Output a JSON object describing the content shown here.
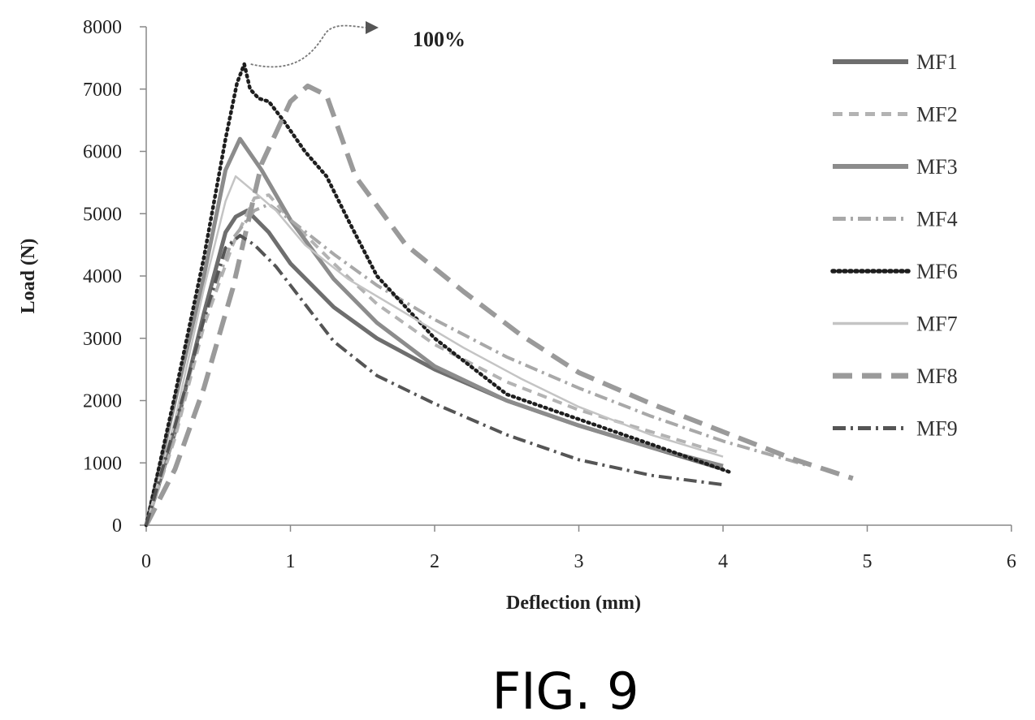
{
  "figure_caption": "FIG. 9",
  "chart_data": {
    "type": "line",
    "title": "",
    "xlabel": "Deflection (mm)",
    "ylabel": "Load (N)",
    "xlim": [
      0,
      6
    ],
    "ylim": [
      0,
      8000
    ],
    "x_ticks": [
      "0",
      "1",
      "2",
      "3",
      "4",
      "5",
      "6"
    ],
    "y_ticks": [
      "0",
      "1000",
      "2000",
      "3000",
      "4000",
      "5000",
      "6000",
      "7000",
      "8000"
    ],
    "grid": false,
    "legend_position": "right",
    "annotation": {
      "text": "100%",
      "points_to": {
        "x": 0.68,
        "y": 7400
      }
    },
    "series": [
      {
        "name": "MF1",
        "style": "solid",
        "color": "#6e6e6e",
        "x": [
          0,
          0.2,
          0.4,
          0.55,
          0.62,
          0.7,
          0.85,
          1.0,
          1.3,
          1.6,
          2.0,
          2.5,
          3.0,
          3.5,
          4.0
        ],
        "y": [
          0,
          1500,
          3400,
          4700,
          4950,
          5050,
          4700,
          4200,
          3500,
          3000,
          2500,
          2000,
          1600,
          1250,
          900
        ]
      },
      {
        "name": "MF2",
        "style": "dashed",
        "color": "#b3b3b3",
        "x": [
          0,
          0.2,
          0.4,
          0.6,
          0.75,
          0.85,
          1.0,
          1.3,
          1.6,
          2.0,
          2.5,
          3.0,
          3.5,
          4.0
        ],
        "y": [
          0,
          1400,
          3200,
          4500,
          5250,
          5300,
          4900,
          4200,
          3550,
          2900,
          2300,
          1850,
          1500,
          1150
        ]
      },
      {
        "name": "MF3",
        "style": "solid",
        "color": "#8c8c8c",
        "x": [
          0,
          0.2,
          0.4,
          0.55,
          0.65,
          0.8,
          1.0,
          1.3,
          1.6,
          2.0,
          2.5,
          3.0,
          3.5,
          4.0
        ],
        "y": [
          0,
          2000,
          4000,
          5700,
          6200,
          5700,
          4900,
          3950,
          3250,
          2550,
          2000,
          1600,
          1250,
          950
        ]
      },
      {
        "name": "MF4",
        "style": "dashdot",
        "color": "#a8a8a8",
        "x": [
          0,
          0.2,
          0.4,
          0.6,
          0.75,
          0.85,
          1.0,
          1.3,
          1.6,
          2.0,
          2.5,
          3.0,
          3.5,
          4.0,
          4.6
        ],
        "y": [
          0,
          1500,
          3300,
          4600,
          5050,
          5150,
          4900,
          4350,
          3850,
          3300,
          2700,
          2200,
          1750,
          1350,
          950
        ]
      },
      {
        "name": "MF6",
        "style": "dotted",
        "color": "#1e1e1e",
        "x": [
          0,
          0.2,
          0.4,
          0.55,
          0.63,
          0.68,
          0.72,
          0.78,
          0.85,
          0.95,
          1.1,
          1.25,
          1.4,
          1.6,
          2.0,
          2.5,
          3.0,
          3.5,
          4.05
        ],
        "y": [
          0,
          2100,
          4300,
          6200,
          7100,
          7400,
          7000,
          6850,
          6800,
          6500,
          6000,
          5600,
          4900,
          4000,
          3000,
          2100,
          1700,
          1300,
          850
        ]
      },
      {
        "name": "MF7",
        "style": "solid-thin",
        "color": "#c4c4c4",
        "x": [
          0,
          0.2,
          0.4,
          0.55,
          0.62,
          0.75,
          0.9,
          1.1,
          1.4,
          1.8,
          2.2,
          2.6,
          3.0,
          3.5,
          4.0
        ],
        "y": [
          0,
          1700,
          3800,
          5200,
          5600,
          5350,
          5050,
          4500,
          3950,
          3400,
          2850,
          2350,
          1900,
          1450,
          1100
        ]
      },
      {
        "name": "MF8",
        "style": "long-dash",
        "color": "#9a9a9a",
        "x": [
          0,
          0.2,
          0.4,
          0.6,
          0.8,
          0.9,
          1.0,
          1.12,
          1.25,
          1.45,
          1.8,
          2.2,
          2.6,
          3.0,
          3.5,
          4.0,
          4.5,
          4.9
        ],
        "y": [
          0,
          900,
          2200,
          3800,
          5800,
          6300,
          6800,
          7050,
          6900,
          5600,
          4500,
          3750,
          3050,
          2450,
          1950,
          1500,
          1050,
          750
        ]
      },
      {
        "name": "MF9",
        "style": "dashdot",
        "color": "#555555",
        "x": [
          0,
          0.2,
          0.4,
          0.55,
          0.65,
          0.75,
          0.9,
          1.1,
          1.3,
          1.6,
          2.0,
          2.5,
          3.0,
          3.5,
          4.0
        ],
        "y": [
          0,
          1600,
          3300,
          4450,
          4650,
          4500,
          4150,
          3550,
          2950,
          2400,
          1950,
          1450,
          1050,
          800,
          650
        ]
      }
    ]
  }
}
